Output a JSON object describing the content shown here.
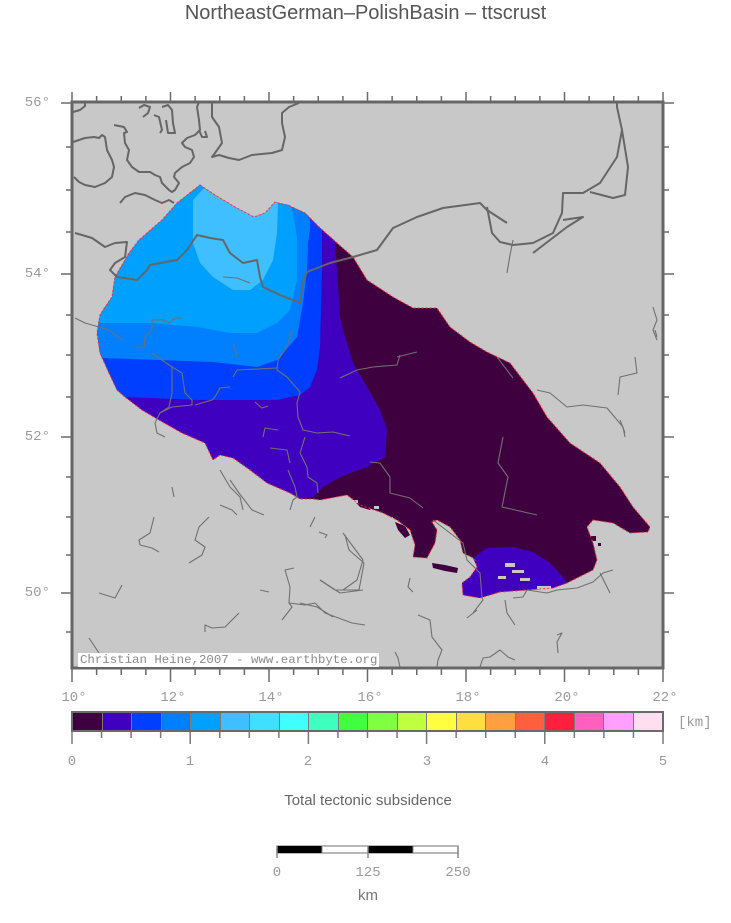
{
  "title": "NortheastGerman–PolishBasin – ttscrust",
  "map": {
    "lat_labels": [
      "56°",
      "54°",
      "52°",
      "50°"
    ],
    "lon_labels": [
      "10°",
      "12°",
      "14°",
      "16°",
      "18°",
      "20°",
      "22°"
    ],
    "credit": "Christian Heine,2007 - www.earthbyte.org",
    "colors": {
      "land": "#c8c8c8",
      "lines": "#666666",
      "frame": "#666666",
      "edge_fringe": "#ff2a2a",
      "hole": "#c8c8c8"
    }
  },
  "colorbar": {
    "title": "Total tectonic subsidence",
    "unit": "[km]",
    "labels": [
      "0",
      "1",
      "2",
      "3",
      "4",
      "5"
    ],
    "range_km": [
      0,
      5
    ],
    "step_km": 0.25,
    "colors": [
      "#3f003f",
      "#3f00bf",
      "#003fff",
      "#007fff",
      "#00a0ff",
      "#3fbfff",
      "#3fdfff",
      "#3fffff",
      "#3fffbf",
      "#3fff3f",
      "#7fff3f",
      "#bfff3f",
      "#ffff3f",
      "#ffdf3f",
      "#ff9f3f",
      "#ff5f3f",
      "#ff1f3f",
      "#ff5fbf",
      "#ff9fff",
      "#ffdfef"
    ]
  },
  "scalebar": {
    "labels": [
      "0",
      "125",
      "250"
    ],
    "unit": "km"
  }
}
